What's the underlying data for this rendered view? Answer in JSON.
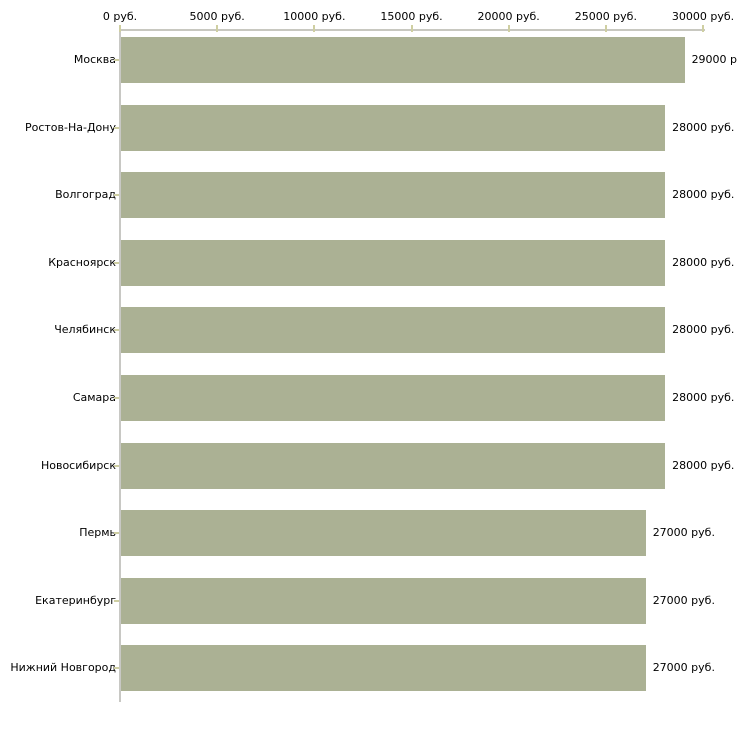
{
  "chart_data": {
    "type": "bar",
    "orientation": "horizontal",
    "title": "",
    "categories": [
      "Москва",
      "Ростов-На-Дону",
      "Волгоград",
      "Красноярск",
      "Челябинск",
      "Самара",
      "Новосибирск",
      "Пермь",
      "Екатеринбург",
      "Нижний Новгород"
    ],
    "values": [
      29000,
      28000,
      28000,
      28000,
      28000,
      28000,
      28000,
      27000,
      27000,
      27000
    ],
    "value_labels": [
      "29000 р",
      "28000 руб.",
      "28000 руб.",
      "28000 руб.",
      "28000 руб.",
      "28000 руб.",
      "28000 руб.",
      "27000 руб.",
      "27000 руб.",
      "27000 руб."
    ],
    "x_axis": {
      "position": "top",
      "xlim": [
        0,
        30000
      ],
      "tick_values": [
        0,
        5000,
        10000,
        15000,
        20000,
        25000,
        30000
      ],
      "tick_labels": [
        "0 руб.",
        "5000 руб.",
        "10000 руб.",
        "15000 руб.",
        "20000 руб.",
        "25000 руб.",
        "30000 руб."
      ]
    },
    "ylabel": "",
    "xlabel": "",
    "grid": false,
    "legend": null,
    "colors": {
      "bar": "#abb194",
      "axis_line": "#c8c8c0",
      "tick_mark": "#cfcfa2",
      "text": "#000000",
      "background": "#ffffff"
    }
  }
}
